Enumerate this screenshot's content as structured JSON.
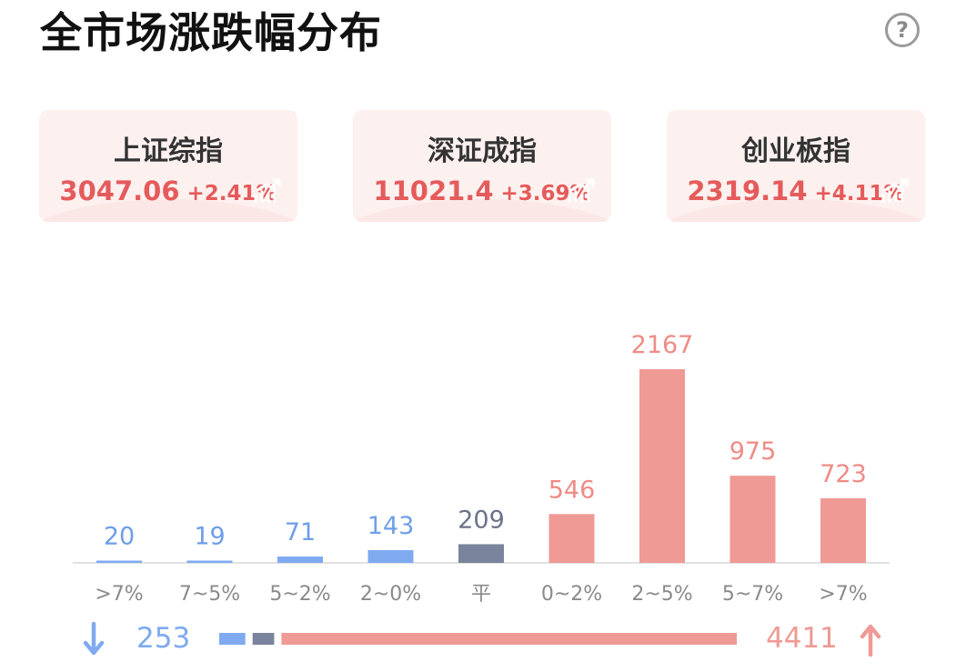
{
  "header": {
    "title": "全市场涨跌幅分布"
  },
  "help_icon": "?",
  "indices": [
    {
      "name": "上证综指",
      "price": "3047.06",
      "change": "+2.41%"
    },
    {
      "name": "深证成指",
      "price": "11021.4",
      "change": "+3.69%"
    },
    {
      "name": "创业板指",
      "price": "2319.14",
      "change": "+4.11%"
    }
  ],
  "colors": {
    "up": "#ef9a95",
    "down": "#7faaf0",
    "flat": "#7a849c",
    "up_text": "#e55b5b"
  },
  "chart_data": {
    "type": "bar",
    "categories": [
      ">7%",
      "7~5%",
      "5~2%",
      "2~0%",
      "平",
      "0~2%",
      "2~5%",
      "5~7%",
      ">7%"
    ],
    "values": [
      20,
      19,
      71,
      143,
      209,
      546,
      2167,
      975,
      723
    ],
    "series_kind": [
      "down",
      "down",
      "down",
      "down",
      "flat",
      "up",
      "up",
      "up",
      "up"
    ],
    "ylim": [
      0,
      2167
    ]
  },
  "summary": {
    "down_total": "253",
    "up_total": "4411",
    "flat_total": 209
  }
}
